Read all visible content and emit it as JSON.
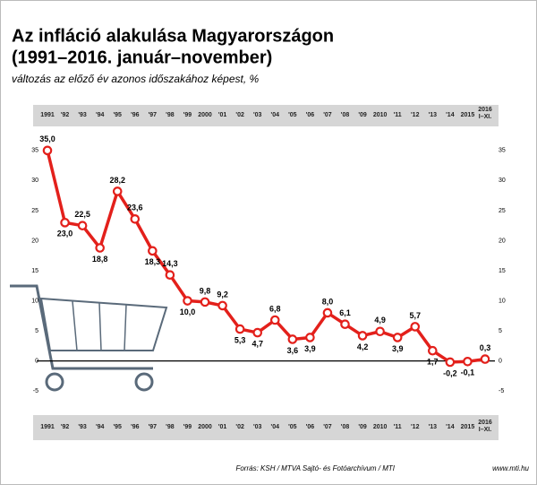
{
  "chart_data": {
    "type": "line",
    "title": "Az infláció alakulása Magyarországon",
    "subtitle": "(1991–2016. január–november)",
    "ylabel": "változás az előző év azonos időszakához képest, %",
    "categories": [
      "1991",
      "'92",
      "'93",
      "'94",
      "'95",
      "'96",
      "'97",
      "'98",
      "'99",
      "2000",
      "'01",
      "'02",
      "'03",
      "'04",
      "'05",
      "'06",
      "'07",
      "'08",
      "'09",
      "2010",
      "'11",
      "'12",
      "'13",
      "'14",
      "2015",
      "2016 I–XI."
    ],
    "series": [
      {
        "name": "Infláció",
        "color": "#e3201b",
        "values": [
          35.0,
          23.0,
          22.5,
          18.8,
          28.2,
          23.6,
          18.3,
          14.3,
          10.0,
          9.8,
          9.2,
          5.3,
          4.7,
          6.8,
          3.6,
          3.9,
          8.0,
          6.1,
          4.2,
          4.9,
          3.9,
          5.7,
          1.7,
          -0.2,
          -0.1,
          0.3
        ],
        "value_labels": [
          "35,0",
          "23,0",
          "22,5",
          "18,8",
          "28,2",
          "23,6",
          "18,3",
          "14,3",
          "10,0",
          "9,8",
          "9,2",
          "5,3",
          "4,7",
          "6,8",
          "3,6",
          "3,9",
          "8,0",
          "6,1",
          "4,2",
          "4,9",
          "3,9",
          "5,7",
          "1,7",
          "-0,2",
          "-0,1",
          "0,3"
        ]
      }
    ],
    "ylim": [
      -9,
      39
    ],
    "yticks": [
      -5,
      0,
      5,
      10,
      15,
      20,
      25,
      30,
      35
    ],
    "grid": false,
    "source": "Forrás: KSH / MTVA Sajtó- és Fotóarchívum / MTI",
    "website": "www.mti.hu"
  }
}
